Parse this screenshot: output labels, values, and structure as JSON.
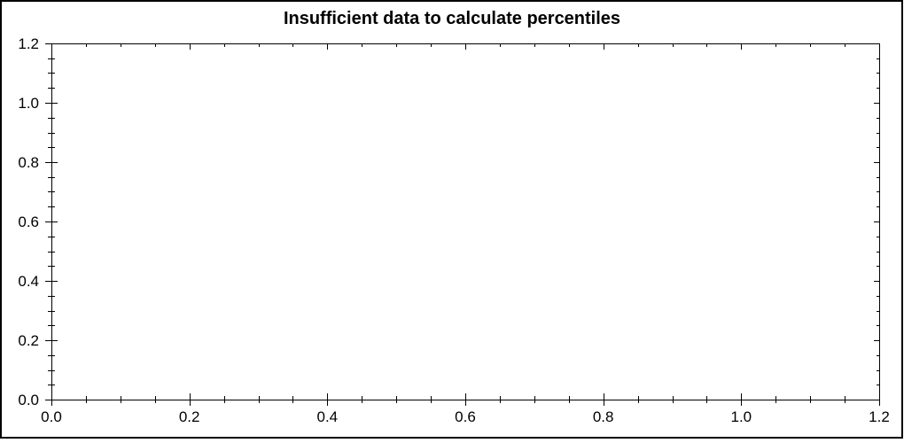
{
  "frame": {
    "background": "#ffffff",
    "border_color": "#000000"
  },
  "chart_data": {
    "type": "scatter",
    "title": "Insufficient data to calculate percentiles",
    "series": [],
    "points": [],
    "xlabel": "",
    "ylabel": "",
    "xlim": [
      0.0,
      1.2
    ],
    "ylim": [
      0.0,
      1.2
    ],
    "x_tick_values": [
      0.0,
      0.2,
      0.4,
      0.6,
      0.8,
      1.0,
      1.2
    ],
    "x_tick_labels": [
      "0.0",
      "0.2",
      "0.4",
      "0.6",
      "0.8",
      "1.0",
      "1.2"
    ],
    "y_tick_values": [
      0.0,
      0.2,
      0.4,
      0.6,
      0.8,
      1.0,
      1.2
    ],
    "y_tick_labels": [
      "0.0",
      "0.2",
      "0.4",
      "0.6",
      "0.8",
      "1.0",
      "1.2"
    ],
    "minor_tick_step": 0.05,
    "grid": false,
    "legend": null,
    "axis_color": "#000000",
    "text_color": "#000000",
    "background": "#ffffff",
    "tick_style": "major-and-minor ticks cross left/bottom axes, point inward on top/right axes"
  }
}
